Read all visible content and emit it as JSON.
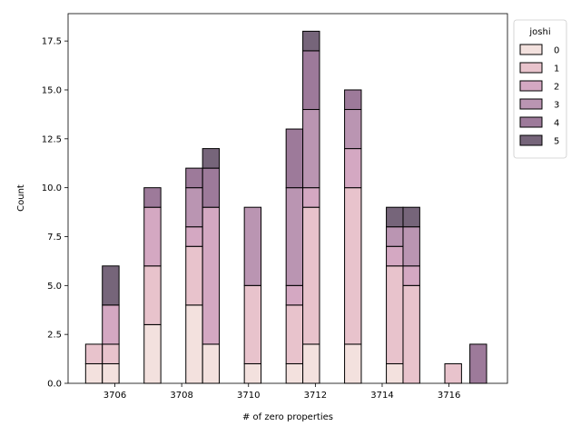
{
  "chart_data": {
    "type": "bar",
    "stacked": true,
    "xlabel": "# of zero properties",
    "ylabel": "Count",
    "xlim": [
      3704.6,
      3717.75
    ],
    "ylim": [
      0,
      18.9
    ],
    "x_ticks": [
      3706,
      3708,
      3710,
      3712,
      3714,
      3716
    ],
    "y_ticks": [
      0,
      2.5,
      5,
      7.5,
      10,
      12.5,
      15,
      17.5
    ],
    "y_tick_labels": [
      "0.0",
      "2.5",
      "5.0",
      "7.5",
      "10.0",
      "12.5",
      "15.0",
      "17.5"
    ],
    "legend": {
      "title": "joshi",
      "placement": "upper-right outside"
    },
    "grid": false,
    "hue_order": [
      "0",
      "1",
      "2",
      "3",
      "4",
      "5"
    ],
    "colors": {
      "0": "#f1dcd8",
      "1": "#e4b8c3",
      "2": "#cc99b7",
      "3": "#ae82a5",
      "4": "#8c6388",
      "5": "#5e4a63"
    },
    "bins": [
      {
        "x": 3705.375,
        "segments": [
          {
            "hue": "0",
            "count": 1
          },
          {
            "hue": "1",
            "count": 1
          }
        ]
      },
      {
        "x": 3705.875,
        "segments": [
          {
            "hue": "0",
            "count": 1
          },
          {
            "hue": "1",
            "count": 1
          },
          {
            "hue": "2",
            "count": 2
          },
          {
            "hue": "5",
            "count": 2
          }
        ]
      },
      {
        "x": 3707.125,
        "segments": [
          {
            "hue": "0",
            "count": 3
          },
          {
            "hue": "1",
            "count": 3
          },
          {
            "hue": "2",
            "count": 3
          },
          {
            "hue": "4",
            "count": 1
          }
        ]
      },
      {
        "x": 3708.375,
        "segments": [
          {
            "hue": "0",
            "count": 4
          },
          {
            "hue": "1",
            "count": 3
          },
          {
            "hue": "2",
            "count": 1
          },
          {
            "hue": "3",
            "count": 2
          },
          {
            "hue": "4",
            "count": 1
          }
        ]
      },
      {
        "x": 3708.875,
        "segments": [
          {
            "hue": "0",
            "count": 2
          },
          {
            "hue": "2",
            "count": 7
          },
          {
            "hue": "4",
            "count": 2
          },
          {
            "hue": "5",
            "count": 1
          }
        ]
      },
      {
        "x": 3710.125,
        "segments": [
          {
            "hue": "0",
            "count": 1
          },
          {
            "hue": "1",
            "count": 4
          },
          {
            "hue": "3",
            "count": 4
          }
        ]
      },
      {
        "x": 3711.375,
        "segments": [
          {
            "hue": "0",
            "count": 1
          },
          {
            "hue": "1",
            "count": 3
          },
          {
            "hue": "2",
            "count": 1
          },
          {
            "hue": "3",
            "count": 5
          },
          {
            "hue": "4",
            "count": 3
          }
        ]
      },
      {
        "x": 3711.875,
        "segments": [
          {
            "hue": "0",
            "count": 2
          },
          {
            "hue": "1",
            "count": 7
          },
          {
            "hue": "2",
            "count": 1
          },
          {
            "hue": "3",
            "count": 4
          },
          {
            "hue": "4",
            "count": 3
          },
          {
            "hue": "5",
            "count": 1
          }
        ]
      },
      {
        "x": 3713.125,
        "segments": [
          {
            "hue": "0",
            "count": 2
          },
          {
            "hue": "1",
            "count": 8
          },
          {
            "hue": "2",
            "count": 2
          },
          {
            "hue": "3",
            "count": 2
          },
          {
            "hue": "4",
            "count": 1
          }
        ]
      },
      {
        "x": 3714.375,
        "segments": [
          {
            "hue": "0",
            "count": 1
          },
          {
            "hue": "1",
            "count": 5
          },
          {
            "hue": "2",
            "count": 1
          },
          {
            "hue": "3",
            "count": 1
          },
          {
            "hue": "5",
            "count": 1
          }
        ]
      },
      {
        "x": 3714.875,
        "segments": [
          {
            "hue": "1",
            "count": 5
          },
          {
            "hue": "2",
            "count": 1
          },
          {
            "hue": "3",
            "count": 2
          },
          {
            "hue": "5",
            "count": 1
          }
        ]
      },
      {
        "x": 3716.125,
        "segments": [
          {
            "hue": "1",
            "count": 1
          }
        ]
      },
      {
        "x": 3716.875,
        "segments": [
          {
            "hue": "4",
            "count": 2
          }
        ]
      }
    ],
    "bar_width": 0.5
  }
}
